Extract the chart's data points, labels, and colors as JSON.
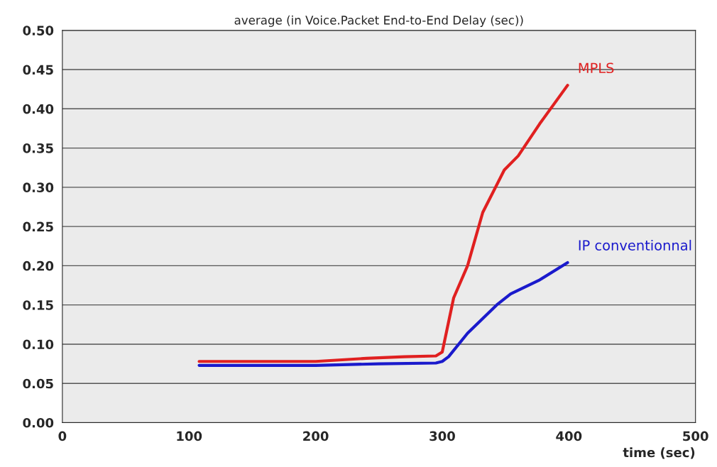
{
  "chart_data": {
    "type": "line",
    "title": "average (in Voice.Packet End-to-End Delay (sec))",
    "xlabel": "time (sec)",
    "xlim": [
      0,
      500
    ],
    "xticks": [
      0,
      100,
      200,
      300,
      400,
      500
    ],
    "ylim": [
      0,
      0.5
    ],
    "yticks": [
      {
        "value": 0,
        "label": "0.00"
      },
      {
        "value": 0.05,
        "label": "0.05"
      },
      {
        "value": 0.1,
        "label": "0.10"
      },
      {
        "value": 0.15,
        "label": "0.15"
      },
      {
        "value": 0.2,
        "label": "0.20"
      },
      {
        "value": 0.25,
        "label": "0.25"
      },
      {
        "value": 0.3,
        "label": "0.30"
      },
      {
        "value": 0.35,
        "label": "0.35"
      },
      {
        "value": 0.4,
        "label": "0.40"
      },
      {
        "value": 0.45,
        "label": "0.45"
      },
      {
        "value": 0.5,
        "label": "0.50"
      }
    ],
    "grid": "y",
    "legend": false,
    "series": [
      {
        "name": "MPLS",
        "color": "#e02020",
        "x": [
          108,
          150,
          200,
          240,
          270,
          295,
          300,
          309,
          320,
          332,
          349,
          360,
          377,
          399
        ],
        "values": [
          0.078,
          0.078,
          0.078,
          0.082,
          0.084,
          0.085,
          0.09,
          0.159,
          0.2,
          0.268,
          0.322,
          0.34,
          0.381,
          0.43
        ]
      },
      {
        "name": "IP conventionnal",
        "color": "#1a1acc",
        "x": [
          108,
          150,
          200,
          250,
          295,
          300,
          305,
          320,
          343,
          354,
          377,
          399
        ],
        "values": [
          0.073,
          0.073,
          0.073,
          0.075,
          0.076,
          0.078,
          0.084,
          0.114,
          0.15,
          0.164,
          0.182,
          0.204
        ]
      }
    ]
  }
}
